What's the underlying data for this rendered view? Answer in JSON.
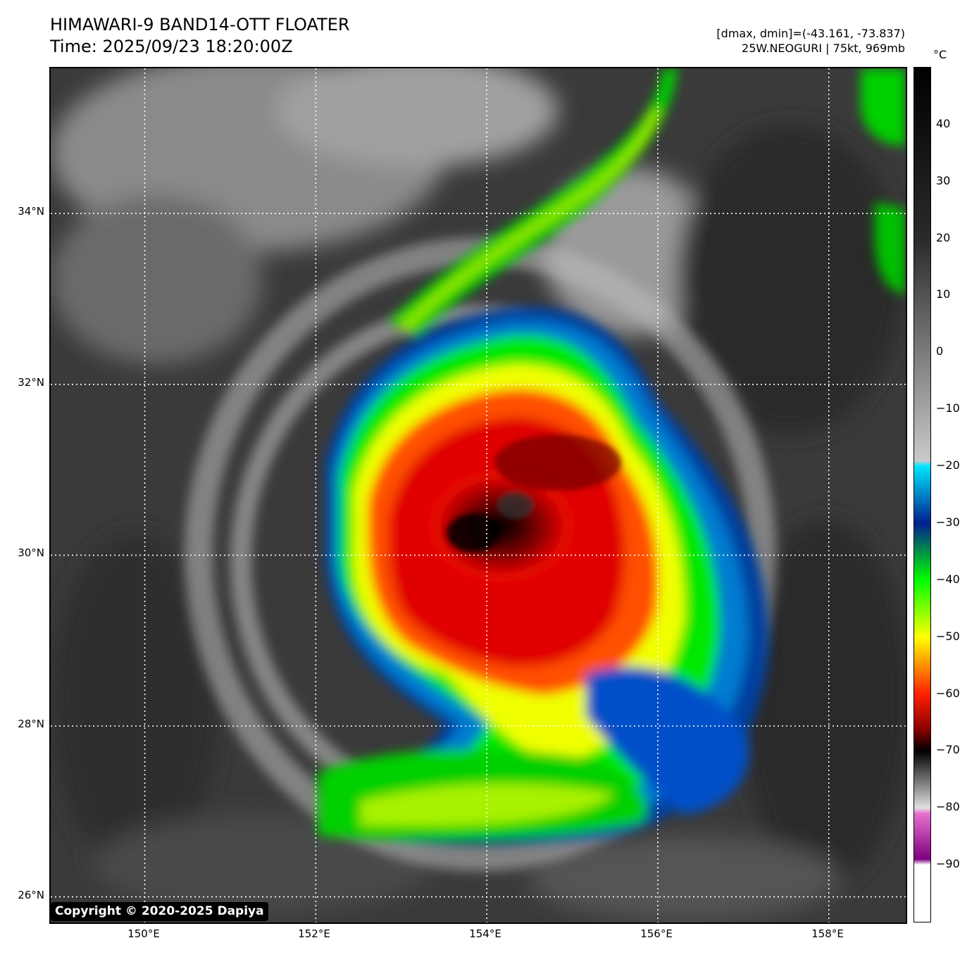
{
  "header": {
    "title_line1": "HIMAWARI-9 BAND14-OTT FLOATER",
    "title_line2": "Time: 2025/09/23 18:20:00Z",
    "range_text": "[dmax, dmin]=(-43.161, -73.837)",
    "storm_text": "25W.NEOGURI | 75kt, 969mb"
  },
  "map": {
    "lat_labels": [
      "34°N",
      "32°N",
      "30°N",
      "28°N",
      "26°N"
    ],
    "lon_labels": [
      "150°E",
      "152°E",
      "154°E",
      "156°E",
      "158°E"
    ],
    "lat_range": [
      25.7,
      35.7
    ],
    "lon_range": [
      148.9,
      158.9
    ],
    "lat_lines": [
      34,
      32,
      30,
      28,
      26
    ],
    "lon_lines": [
      150,
      152,
      154,
      156,
      158
    ],
    "storm_center": {
      "lat": 30.1,
      "lon": 153.9
    },
    "grid_style": "dotted white"
  },
  "copyright": "Copyright © 2020-2025 Dapiya",
  "colorbar": {
    "unit": "°C",
    "range": [
      -100,
      50
    ],
    "ticks": [
      "40",
      "30",
      "20",
      "10",
      "0",
      "−10",
      "−20",
      "−30",
      "−40",
      "−50",
      "−60",
      "−70",
      "−80",
      "−90"
    ],
    "tick_values": [
      40,
      30,
      20,
      10,
      0,
      -10,
      -20,
      -30,
      -40,
      -50,
      -60,
      -70,
      -80,
      -90
    ],
    "stops": [
      {
        "value": 50,
        "color": "#000000"
      },
      {
        "value": 20,
        "color": "#2a2a2a"
      },
      {
        "value": -19,
        "color": "#c9c9c9"
      },
      {
        "value": -20,
        "color": "#00e5ff"
      },
      {
        "value": -30,
        "color": "#002090"
      },
      {
        "value": -40,
        "color": "#00ff00"
      },
      {
        "value": -50,
        "color": "#ffff00"
      },
      {
        "value": -60,
        "color": "#ff2000"
      },
      {
        "value": -66,
        "color": "#900000"
      },
      {
        "value": -70,
        "color": "#000000"
      },
      {
        "value": -80,
        "color": "#e0e0e0"
      },
      {
        "value": -81,
        "color": "#e870d0"
      },
      {
        "value": -89,
        "color": "#800080"
      },
      {
        "value": -90,
        "color": "#ffffff"
      },
      {
        "value": -100,
        "color": "#ffffff"
      }
    ]
  },
  "colors": {
    "background_cloud": "#3a3a3a",
    "cold_top": "#ff2000",
    "coldest_core": "#000000",
    "band_green": "#00ff00"
  }
}
